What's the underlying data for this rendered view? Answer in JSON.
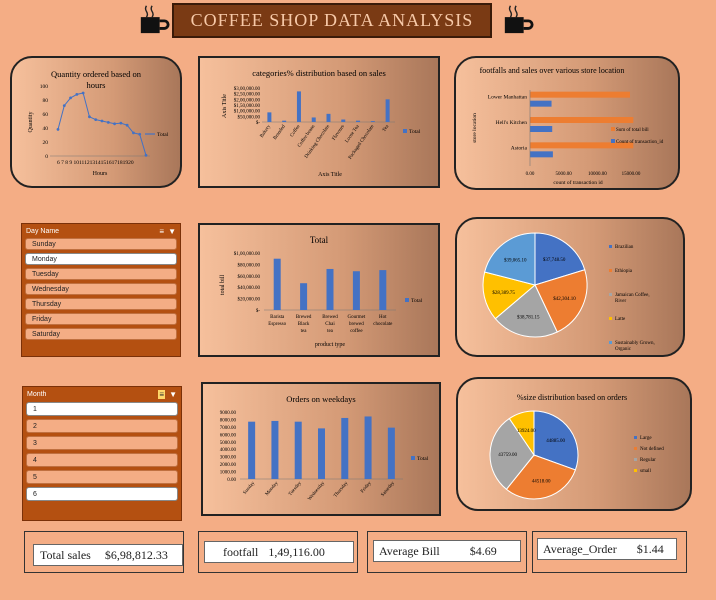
{
  "header": {
    "title": "COFFEE SHOP DATA ANALYSIS"
  },
  "chart_data": [
    {
      "id": "hours",
      "type": "line",
      "title": "Quantity ordered based on hours",
      "xlabel": "Hours",
      "ylabel": "Quantity",
      "x": [
        6,
        7,
        8,
        9,
        10,
        11,
        12,
        13,
        14,
        15,
        16,
        17,
        18,
        19,
        20
      ],
      "x_tick_text": "6 7 8 9 1011121314151617181920",
      "values": [
        380,
        720,
        830,
        880,
        900,
        560,
        520,
        500,
        480,
        460,
        470,
        440,
        330,
        310,
        10
      ],
      "y_ticks": [
        "100",
        "80",
        "60",
        "40",
        "20",
        "0"
      ],
      "series": [
        {
          "name": "Total"
        }
      ],
      "ylim": [
        0,
        1000
      ]
    },
    {
      "id": "categories",
      "type": "bar",
      "title": "categories% distribution based on sales",
      "xlabel": "Axis Title",
      "ylabel": "Axis Title",
      "categories": [
        "Bakery",
        "Branded",
        "Coffee",
        "Coffee beans",
        "Drinking Chocolate",
        "Flavours",
        "Loose Tea",
        "Packaged Chocolate",
        "Tea"
      ],
      "values": [
        85000,
        12000,
        270000,
        40000,
        72000,
        22000,
        12000,
        8000,
        200000
      ],
      "y_ticks": [
        "$3,00,000.00",
        "$2,50,000.00",
        "$2,00,000.00",
        "$1,50,000.00",
        "$1,00,000.00",
        "$50,000.00",
        "$-"
      ],
      "series": [
        {
          "name": "Total"
        }
      ],
      "ylim": [
        0,
        300000
      ]
    },
    {
      "id": "locations",
      "type": "bar",
      "title": "footfalls and sales over various store location",
      "xlabel": "count of transaction id",
      "ylabel": "store location",
      "categories": [
        "Lower Manhattan",
        "Hell's Kitchen",
        "Astoria"
      ],
      "series": [
        {
          "name": "Sum of total bill",
          "values": [
            15000,
            15500,
            15500
          ]
        },
        {
          "name": "Count of transaction_id",
          "values": [
            3200,
            3300,
            3400
          ]
        }
      ],
      "x_ticks": [
        "0.00",
        "5000.00",
        "10000.00",
        "15000.00"
      ],
      "xlim": [
        0,
        15000
      ]
    },
    {
      "id": "product",
      "type": "bar",
      "title": "Total",
      "xlabel": "product type",
      "ylabel": "total bill",
      "categories": [
        "Barista Espresso",
        "Brewed Black tea",
        "Brewed Chai tea",
        "Gourmet brewed coffee",
        "Hot chocolate"
      ],
      "values": [
        90000,
        47000,
        72000,
        68000,
        70000
      ],
      "y_ticks": [
        "$1,00,000.00",
        "$80,000.00",
        "$60,000.00",
        "$40,000.00",
        "$20,000.00",
        "$-"
      ],
      "series": [
        {
          "name": "Total"
        }
      ],
      "ylim": [
        0,
        100000
      ]
    },
    {
      "id": "origin",
      "type": "pie",
      "values": [
        37748.5,
        42304.1,
        38781.15,
        28389.75,
        39065.1
      ],
      "labels": [
        "$37,748.50",
        "$42,304.10",
        "$38,781.15",
        "$28,389.75",
        "$39,065.10"
      ],
      "legend": [
        "Brazilian",
        "Ethiopia",
        "Jamaican Coffee River",
        "Latte",
        "Sustainably Grown Organic"
      ],
      "colors": [
        "#4472c4",
        "#ed7d31",
        "#a5a5a5",
        "#ffc000",
        "#5b9bd5"
      ]
    },
    {
      "id": "weekdays",
      "type": "bar",
      "title": "Orders on weekdays",
      "categories": [
        "Sunday",
        "Monday",
        "Tuesday",
        "Wednesday",
        "Thursday",
        "Friday",
        "Saturday"
      ],
      "values": [
        7700,
        7800,
        7700,
        6800,
        8200,
        8400,
        6900
      ],
      "y_ticks": [
        "9000.00",
        "8000.00",
        "7000.00",
        "6000.00",
        "5000.00",
        "4000.00",
        "3000.00",
        "2000.00",
        "1000.00",
        "0.00"
      ],
      "series": [
        {
          "name": "Total"
        }
      ],
      "ylim": [
        0,
        9000
      ]
    },
    {
      "id": "size",
      "type": "pie",
      "title": "%size distribution based on orders",
      "values": [
        44885,
        44518,
        43759,
        13924
      ],
      "labels": [
        "44885.00",
        "44518.00",
        "43759.00",
        "13924.00"
      ],
      "legend": [
        "Large",
        "Not defined",
        "Regular",
        "small"
      ],
      "colors": [
        "#4472c4",
        "#ed7d31",
        "#a5a5a5",
        "#ffc000"
      ]
    }
  ],
  "slicer_day": {
    "title": "Day Name",
    "items": [
      "Sunday",
      "Monday",
      "Tuesday",
      "Wednesday",
      "Thursday",
      "Friday",
      "Saturday"
    ],
    "selected": 1
  },
  "slicer_month": {
    "title": "Month",
    "items": [
      "1",
      "2",
      "3",
      "4",
      "5",
      "6"
    ],
    "selected": [
      0,
      5
    ]
  },
  "kpis": [
    {
      "label": "Total sales",
      "value": "$6,98,812.33"
    },
    {
      "label": "footfall",
      "value": "1,49,116.00"
    },
    {
      "label": "Average Bill",
      "value": "$4.69"
    },
    {
      "label": "Average_Order",
      "value": "$1.44"
    }
  ],
  "colors": {
    "bar": "#4472c4",
    "orange": "#ed7d31",
    "slicer": "#b45011",
    "background": "#f4ad85"
  },
  "icons": [
    "coffee-mug-icon",
    "filter-icon",
    "multi-select-icon"
  ]
}
